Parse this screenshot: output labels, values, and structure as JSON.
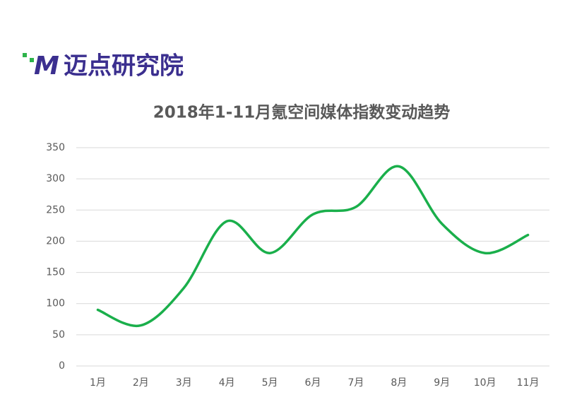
{
  "logo_mark": "M",
  "logo": "迈点研究院",
  "chart_data": {
    "type": "line",
    "title": "2018年1-11月氪空间媒体指数变动趋势",
    "categories": [
      "1月",
      "2月",
      "3月",
      "4月",
      "5月",
      "6月",
      "7月",
      "8月",
      "9月",
      "10月",
      "11月"
    ],
    "series": [
      {
        "name": "氪空间",
        "color": "#1aaf4b",
        "values": [
          90,
          65,
          125,
          232,
          181,
          243,
          255,
          320,
          228,
          181,
          210
        ]
      }
    ],
    "ylim": [
      0,
      350
    ],
    "yticks": [
      0,
      50,
      100,
      150,
      200,
      250,
      300,
      350
    ],
    "grid": true,
    "smooth": true
  }
}
